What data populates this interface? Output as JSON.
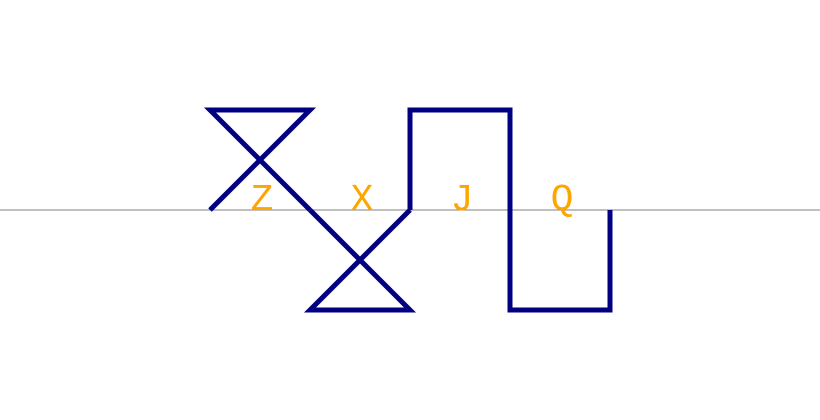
{
  "colors": {
    "background": "#ffffff",
    "axis": "#808080",
    "stroke": "#000080",
    "letters": "#ffa500"
  },
  "labels": [
    "Z",
    "X",
    "J",
    "Q"
  ]
}
